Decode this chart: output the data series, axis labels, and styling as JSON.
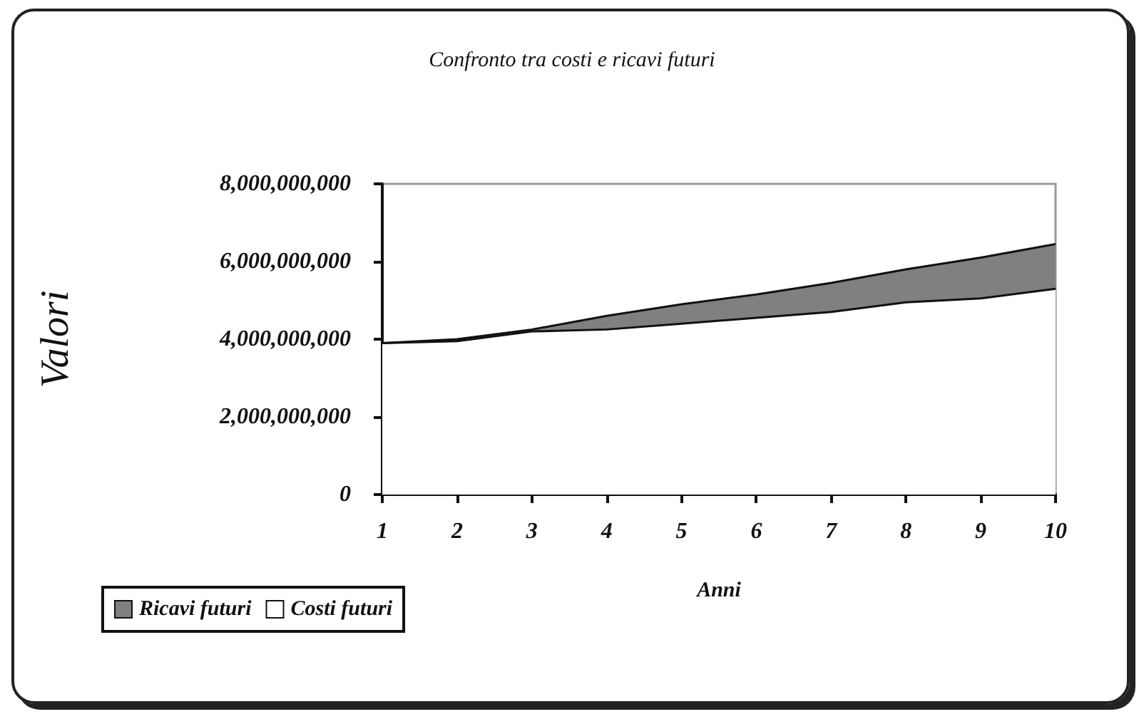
{
  "chart_data": {
    "type": "area",
    "title": "Confronto tra costi e ricavi futuri",
    "xlabel": "Anni",
    "ylabel": "Valori",
    "categories": [
      "1",
      "2",
      "3",
      "4",
      "5",
      "6",
      "7",
      "8",
      "9",
      "10"
    ],
    "series": [
      {
        "name": "Ricavi futuri",
        "color": "#808080",
        "values": [
          3900000000,
          4000000000,
          4250000000,
          4600000000,
          4900000000,
          5150000000,
          5450000000,
          5800000000,
          6100000000,
          6450000000
        ]
      },
      {
        "name": "Costi futuri",
        "color": "#ffffff",
        "values": [
          3900000000,
          3950000000,
          4200000000,
          4250000000,
          4400000000,
          4550000000,
          4700000000,
          4950000000,
          5050000000,
          5300000000
        ]
      }
    ],
    "ylim": [
      0,
      8000000000
    ],
    "yticks": [
      0,
      {
        "value": 2000000000,
        "label": "2,000,000,000"
      },
      {
        "value": 4000000000,
        "label": "4,000,000,000"
      },
      {
        "value": 6000000000,
        "label": "6,000,000,000"
      },
      {
        "value": 8000000000,
        "label": "8,000,000,000"
      }
    ],
    "grid": false,
    "legend": "bottom left"
  }
}
